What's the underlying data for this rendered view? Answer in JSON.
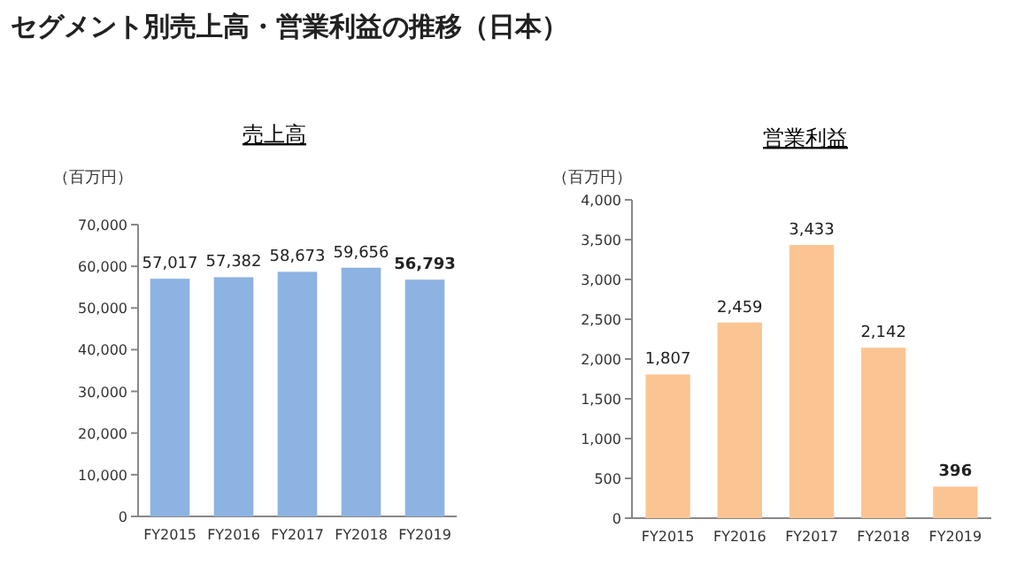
{
  "chart_data": [
    {
      "type": "bar",
      "title": "売上高",
      "ylabel": "（百万円）",
      "annotations": [
        "セグメント別売上高・営業利益の推移（日本）"
      ],
      "categories": [
        "FY2015",
        "FY2016",
        "FY2017",
        "FY2018",
        "FY2019"
      ],
      "values": [
        57017,
        57382,
        58673,
        59656,
        56793
      ],
      "value_labels": [
        "57,017",
        "57,382",
        "58,673",
        "59,656",
        "56,793"
      ],
      "color": "#8db3e2",
      "ylim": [
        0,
        70000
      ],
      "yticks": [
        {
          "value": 0,
          "label": "0"
        },
        {
          "value": 10000,
          "label": "10,000"
        },
        {
          "value": 20000,
          "label": "20,000"
        },
        {
          "value": 30000,
          "label": "30,000"
        },
        {
          "value": 40000,
          "label": "40,000"
        },
        {
          "value": 50000,
          "label": "50,000"
        },
        {
          "value": 60000,
          "label": "60,000"
        },
        {
          "value": 70000,
          "label": "70,000"
        }
      ]
    },
    {
      "type": "bar",
      "title": "営業利益",
      "ylabel": "（百万円）",
      "categories": [
        "FY2015",
        "FY2016",
        "FY2017",
        "FY2018",
        "FY2019"
      ],
      "values": [
        1807,
        2459,
        3433,
        2142,
        396
      ],
      "value_labels": [
        "1,807",
        "2,459",
        "3,433",
        "2,142",
        "396"
      ],
      "color": "#fbc593",
      "ylim": [
        0,
        4000
      ],
      "yticks": [
        {
          "value": 0,
          "label": "0"
        },
        {
          "value": 500,
          "label": "500"
        },
        {
          "value": 1000,
          "label": "1,000"
        },
        {
          "value": 1500,
          "label": "1,500"
        },
        {
          "value": 2000,
          "label": "2,000"
        },
        {
          "value": 2500,
          "label": "2,500"
        },
        {
          "value": 3000,
          "label": "3,000"
        },
        {
          "value": 3500,
          "label": "3,500"
        },
        {
          "value": 4000,
          "label": "4,000"
        }
      ]
    }
  ]
}
